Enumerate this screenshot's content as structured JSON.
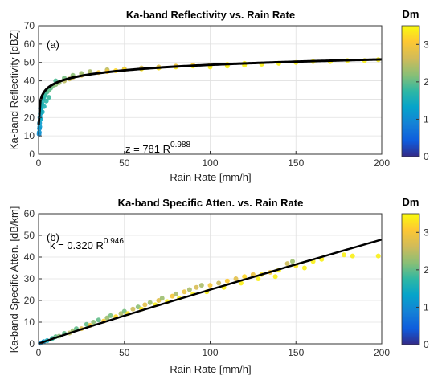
{
  "colorbar_title": "Dm",
  "colorbar": {
    "range": [
      0,
      3.5
    ],
    "ticks": [
      0,
      1,
      2,
      3
    ]
  },
  "chart_data": [
    {
      "type": "scatter",
      "panel_label": "(a)",
      "title": "Ka-band Reflectivity vs. Rain Rate",
      "xlabel": "Rain Rate [mm/h]",
      "ylabel": "Ka-band Reflectivity [dBZ]",
      "xlim": [
        0,
        200
      ],
      "ylim": [
        0,
        70
      ],
      "xticks": [
        0,
        50,
        100,
        150,
        200
      ],
      "yticks": [
        0,
        10,
        20,
        30,
        40,
        50,
        60,
        70
      ],
      "grid": true,
      "fit": {
        "label_base": "z = 781 R",
        "label_exp": "0.988",
        "a": 781,
        "b": 0.988,
        "units": "dBZ"
      },
      "series": [
        {
          "color_by": "Dm",
          "points": [
            [
              0.3,
              11,
              1.0
            ],
            [
              0.5,
              14,
              1.1
            ],
            [
              0.6,
              17,
              1.2
            ],
            [
              0.8,
              20,
              1.3
            ],
            [
              1.0,
              22,
              1.3
            ],
            [
              1.2,
              24,
              1.4
            ],
            [
              1.5,
              26,
              1.5
            ],
            [
              1.8,
              27,
              1.5
            ],
            [
              2,
              28,
              1.6
            ],
            [
              2.5,
              30,
              1.6
            ],
            [
              3,
              31,
              1.7
            ],
            [
              3.5,
              32,
              1.7
            ],
            [
              4,
              33,
              1.8
            ],
            [
              5,
              34,
              1.9
            ],
            [
              6,
              35,
              2.0
            ],
            [
              7,
              36,
              2.0
            ],
            [
              8,
              37,
              2.1
            ],
            [
              1,
              25,
              1.4
            ],
            [
              0.7,
              15,
              1.2
            ],
            [
              0.4,
              12,
              1.1
            ],
            [
              1.3,
              19,
              1.4
            ],
            [
              2.2,
              23,
              1.5
            ],
            [
              3.2,
              26,
              1.6
            ],
            [
              4.5,
              29,
              1.7
            ],
            [
              6,
              31,
              1.8
            ],
            [
              10,
              38,
              2.2
            ],
            [
              12,
              39,
              2.3
            ],
            [
              15,
              40,
              2.5
            ],
            [
              18,
              41,
              2.6
            ],
            [
              20,
              42,
              2.7
            ],
            [
              25,
              43,
              2.8
            ],
            [
              30,
              44,
              2.9
            ],
            [
              35,
              44.5,
              3.0
            ],
            [
              10,
              40,
              1.9
            ],
            [
              15,
              41.5,
              2.1
            ],
            [
              20,
              43,
              2.2
            ],
            [
              25,
              44,
              2.3
            ],
            [
              30,
              45,
              2.4
            ],
            [
              40,
              46,
              2.5
            ],
            [
              50,
              46.5,
              2.6
            ],
            [
              40,
              45,
              3.1
            ],
            [
              45,
              45.5,
              3.2
            ],
            [
              50,
              46,
              3.2
            ],
            [
              60,
              46.5,
              3.3
            ],
            [
              70,
              47,
              3.3
            ],
            [
              80,
              47.5,
              3.4
            ],
            [
              90,
              48,
              3.4
            ],
            [
              60,
              47,
              2.7
            ],
            [
              70,
              47.5,
              2.8
            ],
            [
              80,
              48,
              2.9
            ],
            [
              90,
              48.5,
              3.0
            ],
            [
              100,
              48.5,
              3.2
            ],
            [
              110,
              49,
              3.3
            ],
            [
              120,
              49.5,
              3.4
            ],
            [
              100,
              47.5,
              3.4
            ],
            [
              110,
              48,
              3.4
            ],
            [
              120,
              48.5,
              3.4
            ],
            [
              130,
              49,
              3.4
            ],
            [
              140,
              49.5,
              3.4
            ],
            [
              150,
              50,
              3.4
            ],
            [
              160,
              50.5,
              3.4
            ],
            [
              170,
              50.5,
              3.4
            ],
            [
              180,
              51,
              3.4
            ],
            [
              190,
              51,
              3.4
            ],
            [
              198,
              51.5,
              3.4
            ]
          ]
        }
      ]
    },
    {
      "type": "scatter",
      "panel_label": "",
      "title": "Ka-band Specific Atten. vs. Rain Rate",
      "xlabel": "Rain Rate [mm/h]",
      "ylabel": "Ka-band Specific Atten. [dB/km]",
      "xlim": [
        0,
        200
      ],
      "ylim": [
        0,
        60
      ],
      "xticks": [
        0,
        50,
        100,
        150,
        200
      ],
      "yticks": [
        0,
        10,
        20,
        30,
        40,
        50,
        60
      ],
      "grid": true,
      "fit": {
        "label_base": "k = 0.320 R",
        "label_exp": "0.946",
        "a": 0.32,
        "b": 0.946,
        "units": "dB/km"
      },
      "series": [
        {
          "color_by": "Dm",
          "points": [
            [
              1,
              0.3,
              1.0
            ],
            [
              3,
              1,
              1.2
            ],
            [
              5,
              1.5,
              1.5
            ],
            [
              8,
              2.5,
              1.8
            ],
            [
              10,
              3.3,
              2.0
            ],
            [
              12,
              3.5,
              2.2
            ],
            [
              15,
              4.8,
              2.0
            ],
            [
              18,
              5,
              2.5
            ],
            [
              20,
              6,
              2.3
            ],
            [
              22,
              7,
              2.0
            ],
            [
              25,
              7,
              2.8
            ],
            [
              28,
              9,
              2.0
            ],
            [
              30,
              8.5,
              3.0
            ],
            [
              32,
              10,
              2.2
            ],
            [
              35,
              11,
              2.0
            ],
            [
              38,
              10.5,
              3.1
            ],
            [
              40,
              12,
              2.3
            ],
            [
              42,
              13,
              2.1
            ],
            [
              45,
              12.5,
              3.2
            ],
            [
              48,
              14,
              2.4
            ],
            [
              50,
              15,
              2.1
            ],
            [
              52,
              14,
              3.3
            ],
            [
              55,
              16,
              2.6
            ],
            [
              58,
              17,
              2.2
            ],
            [
              60,
              16,
              3.3
            ],
            [
              62,
              18,
              2.8
            ],
            [
              65,
              19,
              2.3
            ],
            [
              68,
              18,
              3.4
            ],
            [
              70,
              20,
              2.8
            ],
            [
              72,
              21,
              2.3
            ],
            [
              75,
              19.5,
              3.4
            ],
            [
              78,
              22,
              3.0
            ],
            [
              80,
              23,
              2.4
            ],
            [
              82,
              21,
              3.4
            ],
            [
              85,
              24,
              2.9
            ],
            [
              88,
              25,
              2.4
            ],
            [
              90,
              23,
              3.4
            ],
            [
              92,
              26,
              2.7
            ],
            [
              95,
              27,
              2.4
            ],
            [
              98,
              24,
              3.4
            ],
            [
              100,
              27,
              3.0
            ],
            [
              105,
              28,
              2.6
            ],
            [
              108,
              26,
              3.4
            ],
            [
              110,
              29,
              3.1
            ],
            [
              115,
              30,
              2.8
            ],
            [
              118,
              28,
              3.4
            ],
            [
              120,
              31,
              3.2
            ],
            [
              125,
              32,
              2.9
            ],
            [
              128,
              30,
              3.4
            ],
            [
              130,
              32,
              3.3
            ],
            [
              135,
              33,
              3.0
            ],
            [
              138,
              31,
              3.4
            ],
            [
              140,
              34,
              3.4
            ],
            [
              145,
              37,
              2.6
            ],
            [
              148,
              38,
              2.3
            ],
            [
              150,
              36,
              3.3
            ],
            [
              155,
              35,
              3.4
            ],
            [
              160,
              38,
              3.4
            ],
            [
              165,
              39,
              3.4
            ],
            [
              178,
              41,
              3.4
            ],
            [
              183,
              40.5,
              3.4
            ],
            [
              198,
              40.5,
              3.4
            ]
          ]
        }
      ]
    }
  ]
}
